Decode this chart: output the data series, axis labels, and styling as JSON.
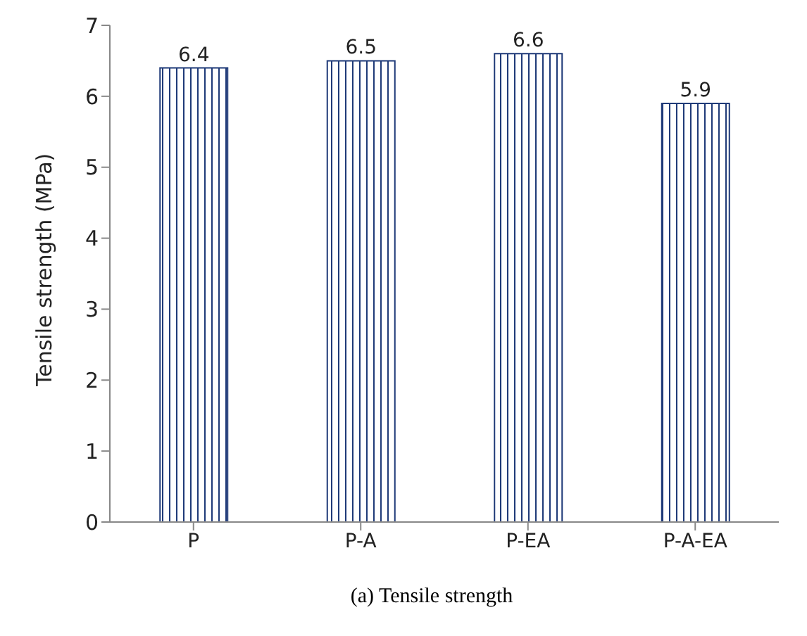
{
  "chart_data": {
    "type": "bar",
    "ylabel": "Tensile strength (MPa)",
    "categories": [
      "P",
      "P-A",
      "P-EA",
      "P-A-EA"
    ],
    "values": [
      6.4,
      6.5,
      6.6,
      5.9
    ],
    "color": "#1f3a78",
    "ylim": [
      0,
      7
    ],
    "yticks": [
      0,
      1,
      2,
      3,
      4,
      5,
      6,
      7
    ],
    "grid": false,
    "data_labels": true,
    "annotations": [
      "(a) Tensile strength"
    ]
  }
}
